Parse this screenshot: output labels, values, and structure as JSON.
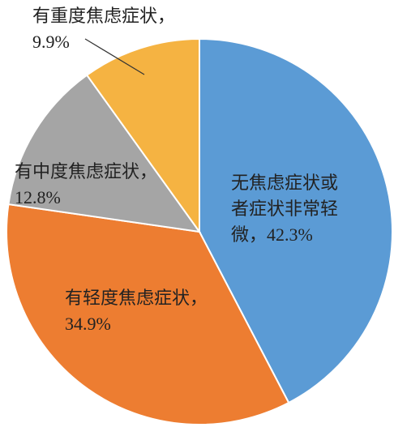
{
  "chart_data": {
    "type": "pie",
    "categories": [
      "无焦虑症状或者症状非常轻微，",
      "有轻度焦虑症状，",
      "有中度焦虑症状，",
      "有重度焦虑症状，"
    ],
    "values": [
      42.3,
      34.9,
      12.8,
      9.9
    ],
    "value_labels": [
      "42.3%",
      "34.9%",
      "12.8%",
      "9.9%"
    ],
    "colors": [
      "#5b9bd5",
      "#ed7d31",
      "#a5a5a5",
      "#f5b342"
    ]
  }
}
